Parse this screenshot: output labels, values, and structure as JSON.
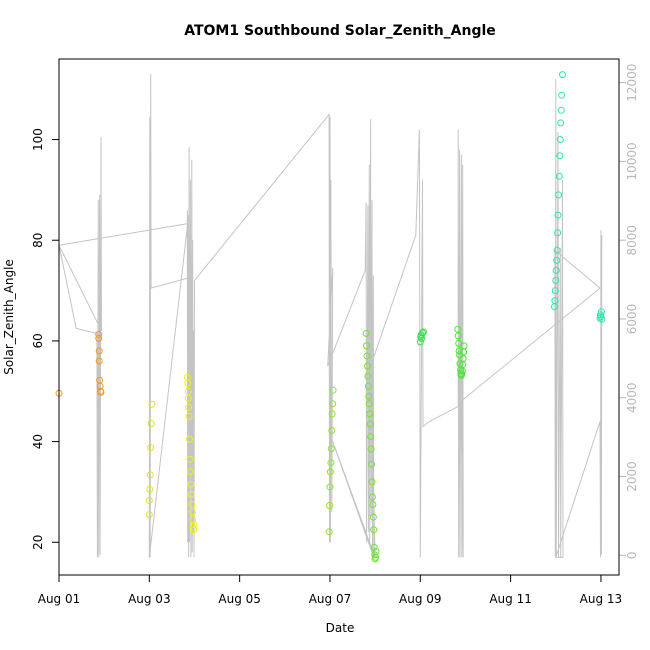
{
  "chart_data": {
    "type": "scatter",
    "title": "ATOM1 Southbound Solar_Zenith_Angle",
    "xlabel": "Date",
    "ylabel": "Solar_Zenith_Angle",
    "xlim": [
      0,
      12.4
    ],
    "ylim": [
      13.5,
      116
    ],
    "x_ticks": [
      {
        "value": 0,
        "label": "Aug 01"
      },
      {
        "value": 2,
        "label": "Aug 03"
      },
      {
        "value": 4,
        "label": "Aug 05"
      },
      {
        "value": 6,
        "label": "Aug 07"
      },
      {
        "value": 8,
        "label": "Aug 09"
      },
      {
        "value": 10,
        "label": "Aug 11"
      },
      {
        "value": 12,
        "label": "Aug 13"
      }
    ],
    "y_ticks": [
      20,
      40,
      60,
      80,
      100
    ],
    "y2_ticks": [
      0,
      2000,
      4000,
      6000,
      8000,
      10000,
      12000
    ],
    "y2lim": [
      -500,
      12600
    ],
    "grid": false,
    "points": [
      {
        "x": 0.0,
        "y": 49.6,
        "color": "#f39a1a"
      },
      {
        "x": 0.88,
        "y": 61.3,
        "color": "#f39a1a"
      },
      {
        "x": 0.88,
        "y": 60.5,
        "color": "#f39a1a"
      },
      {
        "x": 0.89,
        "y": 58.0,
        "color": "#f39a1a"
      },
      {
        "x": 0.89,
        "y": 56.0,
        "color": "#f39a1a"
      },
      {
        "x": 0.9,
        "y": 52.2,
        "color": "#f39a1a"
      },
      {
        "x": 0.91,
        "y": 51.0,
        "color": "#f39a1a"
      },
      {
        "x": 0.92,
        "y": 50.0,
        "color": "#f39a1a"
      },
      {
        "x": 0.93,
        "y": 49.8,
        "color": "#f39a1a"
      },
      {
        "x": 2.0,
        "y": 25.5,
        "color": "#dfe22a"
      },
      {
        "x": 2.0,
        "y": 28.3,
        "color": "#dfe22a"
      },
      {
        "x": 2.01,
        "y": 30.5,
        "color": "#dfe22a"
      },
      {
        "x": 2.02,
        "y": 33.4,
        "color": "#dfe22a"
      },
      {
        "x": 2.03,
        "y": 38.8,
        "color": "#dfe22a"
      },
      {
        "x": 2.04,
        "y": 43.6,
        "color": "#dfe22a"
      },
      {
        "x": 2.06,
        "y": 47.4,
        "color": "#dfe22a"
      },
      {
        "x": 2.84,
        "y": 52.8,
        "color": "#eef21a"
      },
      {
        "x": 2.85,
        "y": 51.6,
        "color": "#eef21a"
      },
      {
        "x": 2.86,
        "y": 50.0,
        "color": "#eef21a"
      },
      {
        "x": 2.86,
        "y": 48.6,
        "color": "#eef21a"
      },
      {
        "x": 2.87,
        "y": 46.8,
        "color": "#eef21a"
      },
      {
        "x": 2.88,
        "y": 45.0,
        "color": "#eef21a"
      },
      {
        "x": 2.89,
        "y": 40.5,
        "color": "#eef21a"
      },
      {
        "x": 2.9,
        "y": 36.5,
        "color": "#eef21a"
      },
      {
        "x": 2.91,
        "y": 34.0,
        "color": "#eef21a"
      },
      {
        "x": 2.92,
        "y": 31.5,
        "color": "#eef21a"
      },
      {
        "x": 2.93,
        "y": 29.5,
        "color": "#eef21a"
      },
      {
        "x": 2.94,
        "y": 27.5,
        "color": "#eef21a"
      },
      {
        "x": 2.95,
        "y": 26.0,
        "color": "#eef21a"
      },
      {
        "x": 2.96,
        "y": 24.5,
        "color": "#eef21a"
      },
      {
        "x": 2.97,
        "y": 23.0,
        "color": "#eef21a"
      },
      {
        "x": 2.98,
        "y": 22.5,
        "color": "#eef21a"
      },
      {
        "x": 2.99,
        "y": 23.5,
        "color": "#eef21a"
      },
      {
        "x": 5.98,
        "y": 22.1,
        "color": "#8fe62f"
      },
      {
        "x": 5.99,
        "y": 27.3,
        "color": "#8fe62f"
      },
      {
        "x": 6.0,
        "y": 31.0,
        "color": "#8fe62f"
      },
      {
        "x": 6.01,
        "y": 34.0,
        "color": "#8fe62f"
      },
      {
        "x": 6.02,
        "y": 35.8,
        "color": "#8fe62f"
      },
      {
        "x": 6.03,
        "y": 38.6,
        "color": "#8fe62f"
      },
      {
        "x": 6.04,
        "y": 42.2,
        "color": "#8fe62f"
      },
      {
        "x": 6.05,
        "y": 45.5,
        "color": "#8fe62f"
      },
      {
        "x": 6.06,
        "y": 47.5,
        "color": "#8fe62f"
      },
      {
        "x": 6.07,
        "y": 50.2,
        "color": "#8fe62f"
      },
      {
        "x": 6.8,
        "y": 61.5,
        "color": "#6fe632"
      },
      {
        "x": 6.81,
        "y": 59.0,
        "color": "#6fe632"
      },
      {
        "x": 6.82,
        "y": 57.0,
        "color": "#6fe632"
      },
      {
        "x": 6.83,
        "y": 55.0,
        "color": "#6fe632"
      },
      {
        "x": 6.84,
        "y": 53.0,
        "color": "#6fe632"
      },
      {
        "x": 6.85,
        "y": 51.0,
        "color": "#6fe632"
      },
      {
        "x": 6.86,
        "y": 49.0,
        "color": "#6fe632"
      },
      {
        "x": 6.87,
        "y": 47.5,
        "color": "#6fe632"
      },
      {
        "x": 6.88,
        "y": 45.5,
        "color": "#6fe632"
      },
      {
        "x": 6.89,
        "y": 43.5,
        "color": "#6fe632"
      },
      {
        "x": 6.9,
        "y": 41.0,
        "color": "#6fe632"
      },
      {
        "x": 6.91,
        "y": 38.5,
        "color": "#6fe632"
      },
      {
        "x": 6.92,
        "y": 35.5,
        "color": "#6fe632"
      },
      {
        "x": 6.93,
        "y": 32.0,
        "color": "#6fe632"
      },
      {
        "x": 6.94,
        "y": 29.0,
        "color": "#6fe632"
      },
      {
        "x": 6.95,
        "y": 27.5,
        "color": "#6fe632"
      },
      {
        "x": 6.96,
        "y": 25.0,
        "color": "#6fe632"
      },
      {
        "x": 6.97,
        "y": 22.5,
        "color": "#6fe632"
      },
      {
        "x": 6.98,
        "y": 19.0,
        "color": "#6fe632"
      },
      {
        "x": 6.99,
        "y": 17.5,
        "color": "#6fe632"
      },
      {
        "x": 7.0,
        "y": 16.7,
        "color": "#6fe632"
      },
      {
        "x": 7.01,
        "y": 17.0,
        "color": "#6fe632"
      },
      {
        "x": 7.02,
        "y": 18.2,
        "color": "#6fe632"
      },
      {
        "x": 8.0,
        "y": 59.8,
        "color": "#2ee64c"
      },
      {
        "x": 8.01,
        "y": 60.8,
        "color": "#2ee64c"
      },
      {
        "x": 8.02,
        "y": 61.2,
        "color": "#2ee64c"
      },
      {
        "x": 8.03,
        "y": 60.5,
        "color": "#2ee64c"
      },
      {
        "x": 8.05,
        "y": 61.6,
        "color": "#2ee64c"
      },
      {
        "x": 8.07,
        "y": 61.8,
        "color": "#2ee64c"
      },
      {
        "x": 8.83,
        "y": 62.3,
        "color": "#4ee63a"
      },
      {
        "x": 8.84,
        "y": 61.0,
        "color": "#4ee63a"
      },
      {
        "x": 8.85,
        "y": 59.5,
        "color": "#4ee63a"
      },
      {
        "x": 8.86,
        "y": 58.0,
        "color": "#4ee63a"
      },
      {
        "x": 8.87,
        "y": 57.2,
        "color": "#4ee63a"
      },
      {
        "x": 8.88,
        "y": 55.5,
        "color": "#4ee63a"
      },
      {
        "x": 8.89,
        "y": 54.2,
        "color": "#4ee63a"
      },
      {
        "x": 8.9,
        "y": 53.5,
        "color": "#4ee63a"
      },
      {
        "x": 8.91,
        "y": 53.1,
        "color": "#4ee63a"
      },
      {
        "x": 8.92,
        "y": 53.4,
        "color": "#4ee63a"
      },
      {
        "x": 8.93,
        "y": 54.0,
        "color": "#4ee63a"
      },
      {
        "x": 8.94,
        "y": 55.3,
        "color": "#4ee63a"
      },
      {
        "x": 8.95,
        "y": 56.5,
        "color": "#4ee63a"
      },
      {
        "x": 8.96,
        "y": 57.8,
        "color": "#4ee63a"
      },
      {
        "x": 8.97,
        "y": 59.0,
        "color": "#4ee63a"
      },
      {
        "x": 10.97,
        "y": 66.8,
        "color": "#2ee6b0"
      },
      {
        "x": 10.98,
        "y": 68.0,
        "color": "#2ee6b0"
      },
      {
        "x": 10.99,
        "y": 70.0,
        "color": "#2ee6b0"
      },
      {
        "x": 11.0,
        "y": 72.0,
        "color": "#2ee6b0"
      },
      {
        "x": 11.01,
        "y": 74.0,
        "color": "#2ee6b0"
      },
      {
        "x": 11.02,
        "y": 76.0,
        "color": "#2ee6b0"
      },
      {
        "x": 11.03,
        "y": 78.0,
        "color": "#2ee6b0"
      },
      {
        "x": 11.04,
        "y": 81.5,
        "color": "#2ee6b0"
      },
      {
        "x": 11.05,
        "y": 85.0,
        "color": "#2ee6b0"
      },
      {
        "x": 11.06,
        "y": 89.0,
        "color": "#2ee6b0"
      },
      {
        "x": 11.08,
        "y": 92.7,
        "color": "#2ee6b0"
      },
      {
        "x": 11.09,
        "y": 96.8,
        "color": "#2ee6b0"
      },
      {
        "x": 11.1,
        "y": 100.0,
        "color": "#2ee6b0"
      },
      {
        "x": 11.11,
        "y": 103.3,
        "color": "#2ee6b0"
      },
      {
        "x": 11.12,
        "y": 105.8,
        "color": "#2ee6b0"
      },
      {
        "x": 11.13,
        "y": 108.8,
        "color": "#2ee6b0"
      },
      {
        "x": 11.15,
        "y": 112.9,
        "color": "#2ee6b0"
      },
      {
        "x": 11.98,
        "y": 64.5,
        "color": "#2ee6b0"
      },
      {
        "x": 11.99,
        "y": 65.2,
        "color": "#2ee6b0"
      },
      {
        "x": 12.0,
        "y": 64.8,
        "color": "#2ee6b0"
      },
      {
        "x": 12.01,
        "y": 65.8,
        "color": "#2ee6b0"
      },
      {
        "x": 12.02,
        "y": 64.3,
        "color": "#2ee6b0"
      }
    ],
    "line_color": "#c4c4c4",
    "line": [
      [
        0.0,
        79.0
      ],
      [
        0.38,
        62.5
      ],
      [
        0.84,
        61.5
      ],
      [
        0.85,
        17.0
      ],
      [
        0.86,
        40.0
      ],
      [
        0.87,
        88.0
      ],
      [
        0.88,
        17.0
      ],
      [
        0.9,
        89.0
      ],
      [
        0.91,
        17.5
      ],
      [
        0.93,
        100.5
      ],
      [
        0.94,
        62.0
      ],
      [
        0.0,
        79.0
      ],
      [
        2.85,
        83.3
      ],
      [
        2.0,
        17.0
      ],
      [
        2.01,
        104.5
      ],
      [
        2.02,
        17.0
      ],
      [
        2.03,
        113.0
      ],
      [
        2.04,
        70.5
      ],
      [
        2.86,
        72.5
      ],
      [
        2.84,
        86.0
      ],
      [
        2.85,
        20.0
      ],
      [
        2.86,
        85.0
      ],
      [
        2.87,
        17.0
      ],
      [
        2.88,
        98.5
      ],
      [
        2.89,
        20.0
      ],
      [
        2.91,
        92.0
      ],
      [
        2.92,
        17.0
      ],
      [
        2.94,
        96.0
      ],
      [
        2.95,
        18.0
      ],
      [
        2.96,
        80.0
      ],
      [
        2.97,
        22.0
      ],
      [
        2.98,
        62.0
      ],
      [
        2.99,
        17.0
      ],
      [
        3.0,
        72.0
      ],
      [
        5.98,
        105.0
      ],
      [
        5.99,
        20.0
      ],
      [
        6.0,
        104.5
      ],
      [
        6.01,
        20.0
      ],
      [
        6.02,
        92.0
      ],
      [
        6.03,
        50.0
      ],
      [
        6.04,
        26.0
      ],
      [
        6.06,
        74.5
      ],
      [
        5.95,
        55.0
      ],
      [
        6.78,
        74.0
      ],
      [
        6.8,
        87.5
      ],
      [
        6.81,
        20.0
      ],
      [
        6.84,
        87.0
      ],
      [
        6.85,
        22.0
      ],
      [
        6.87,
        95.0
      ],
      [
        6.88,
        20.0
      ],
      [
        6.9,
        104.0
      ],
      [
        6.91,
        25.0
      ],
      [
        6.93,
        88.0
      ],
      [
        6.94,
        17.0
      ],
      [
        6.96,
        73.0
      ],
      [
        6.97,
        17.0
      ],
      [
        5.98,
        42.0
      ],
      [
        7.0,
        17.0
      ],
      [
        6.9,
        55.0
      ],
      [
        7.9,
        81.0
      ],
      [
        7.98,
        102.0
      ],
      [
        8.0,
        17.0
      ],
      [
        8.05,
        92.0
      ],
      [
        8.06,
        43.0
      ],
      [
        8.2,
        44.0
      ],
      [
        8.84,
        47.0
      ],
      [
        8.84,
        102.0
      ],
      [
        8.85,
        17.0
      ],
      [
        8.87,
        98.0
      ],
      [
        8.88,
        17.0
      ],
      [
        8.91,
        97.0
      ],
      [
        8.92,
        17.0
      ],
      [
        8.94,
        95.0
      ],
      [
        8.95,
        17.0
      ],
      [
        8.9,
        48.0
      ],
      [
        11.98,
        70.5
      ],
      [
        10.98,
        78.0
      ],
      [
        10.99,
        17.0
      ],
      [
        11.0,
        112.0
      ],
      [
        11.01,
        17.0
      ],
      [
        11.05,
        101.5
      ],
      [
        11.06,
        17.0
      ],
      [
        11.1,
        78.5
      ],
      [
        11.11,
        17.0
      ],
      [
        11.15,
        92.0
      ],
      [
        11.16,
        17.0
      ],
      [
        11.0,
        17.0
      ],
      [
        11.98,
        44.0
      ],
      [
        11.99,
        17.0
      ],
      [
        12.0,
        82.0
      ],
      [
        12.01,
        17.5
      ],
      [
        12.02,
        81.0
      ]
    ]
  }
}
